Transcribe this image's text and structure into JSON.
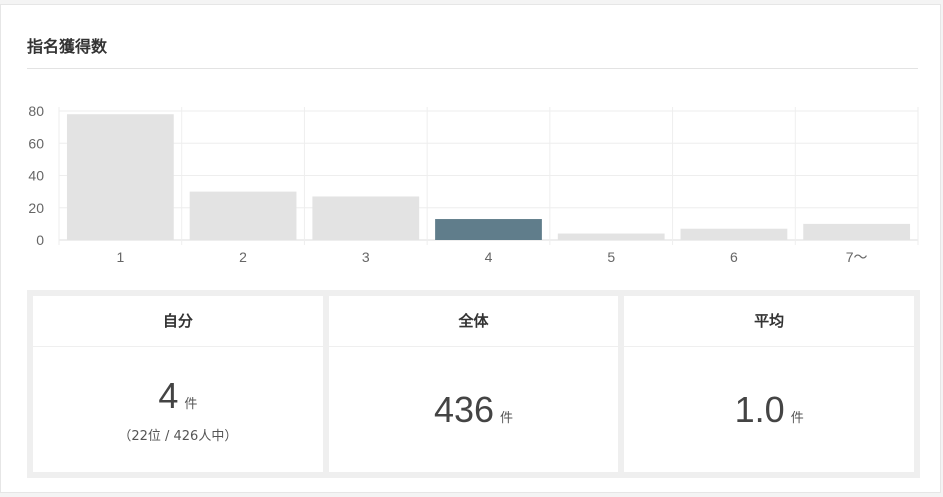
{
  "card": {
    "title": "指名獲得数"
  },
  "chart_data": {
    "type": "bar",
    "categories": [
      "1",
      "2",
      "3",
      "4",
      "5",
      "6",
      "7〜"
    ],
    "values": [
      78,
      30,
      27,
      13,
      4,
      7,
      10
    ],
    "highlight_index": 3,
    "ylim": [
      0,
      80
    ],
    "yticks": [
      0,
      20,
      40,
      60,
      80
    ],
    "title": "",
    "xlabel": "",
    "ylabel": "",
    "grid": true,
    "colors": {
      "bar": "#e3e3e3",
      "highlight": "#607d8b",
      "grid": "#eeeeee",
      "axis": "#dddddd",
      "tick_text": "#666666"
    }
  },
  "stats": [
    {
      "label": "自分",
      "value": "4",
      "unit": "件",
      "sub": "（22位 / 426人中）"
    },
    {
      "label": "全体",
      "value": "436",
      "unit": "件",
      "sub": ""
    },
    {
      "label": "平均",
      "value": "1.0",
      "unit": "件",
      "sub": ""
    }
  ]
}
